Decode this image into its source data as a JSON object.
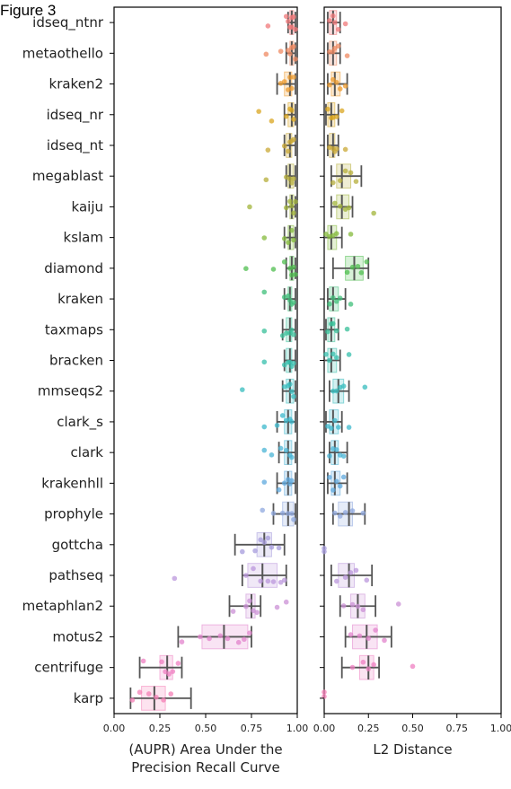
{
  "figure_label": "Figure 3",
  "chart_data": [
    {
      "type": "box",
      "orientation": "horizontal",
      "xlabel": "(AUPR) Area Under the Precision Recall Curve",
      "xlabel_lines": [
        "(AUPR) Area Under the",
        "Precision Recall Curve"
      ],
      "xlim": [
        0.0,
        1.0
      ],
      "xticks": [
        "0.00",
        "0.25",
        "0.50",
        "0.75",
        "1.00"
      ],
      "categories": [
        "idseq_ntnr",
        "metaothello",
        "kraken2",
        "idseq_nr",
        "idseq_nt",
        "megablast",
        "kaiju",
        "kslam",
        "diamond",
        "kraken",
        "taxmaps",
        "bracken",
        "mmseqs2",
        "clark_s",
        "clark",
        "krakenhll",
        "prophyle",
        "gottcha",
        "pathseq",
        "metaphlan2",
        "motus2",
        "centrifuge",
        "karp"
      ],
      "boxes": [
        {
          "whislo": 0.95,
          "q1": 0.96,
          "med": 0.97,
          "q3": 0.98,
          "whishi": 0.99,
          "points": [
            0.84,
            0.94,
            0.95,
            0.96,
            0.97,
            0.97,
            0.98,
            0.99
          ]
        },
        {
          "whislo": 0.94,
          "q1": 0.96,
          "med": 0.97,
          "q3": 0.98,
          "whishi": 0.99,
          "points": [
            0.83,
            0.91,
            0.95,
            0.96,
            0.97,
            0.98,
            0.99
          ]
        },
        {
          "whislo": 0.89,
          "q1": 0.93,
          "med": 0.96,
          "q3": 0.97,
          "whishi": 0.99,
          "points": [
            0.91,
            0.93,
            0.95,
            0.96,
            0.97,
            0.98
          ]
        },
        {
          "whislo": 0.93,
          "q1": 0.95,
          "med": 0.97,
          "q3": 0.98,
          "whishi": 0.99,
          "points": [
            0.79,
            0.86,
            0.94,
            0.96,
            0.97,
            0.98
          ]
        },
        {
          "whislo": 0.93,
          "q1": 0.94,
          "med": 0.96,
          "q3": 0.97,
          "whishi": 0.99,
          "points": [
            0.84,
            0.93,
            0.95,
            0.96,
            0.97,
            0.98
          ]
        },
        {
          "whislo": 0.94,
          "q1": 0.95,
          "med": 0.96,
          "q3": 0.98,
          "whishi": 0.99,
          "points": [
            0.83,
            0.94,
            0.96,
            0.97,
            0.98
          ]
        },
        {
          "whislo": 0.94,
          "q1": 0.96,
          "med": 0.97,
          "q3": 0.98,
          "whishi": 0.99,
          "points": [
            0.74,
            0.94,
            0.96,
            0.97,
            0.98,
            0.99
          ]
        },
        {
          "whislo": 0.93,
          "q1": 0.95,
          "med": 0.96,
          "q3": 0.98,
          "whishi": 0.99,
          "points": [
            0.82,
            0.93,
            0.95,
            0.97,
            0.98
          ]
        },
        {
          "whislo": 0.94,
          "q1": 0.96,
          "med": 0.97,
          "q3": 0.98,
          "whishi": 0.99,
          "points": [
            0.72,
            0.87,
            0.93,
            0.96,
            0.97,
            0.98,
            0.99
          ]
        },
        {
          "whislo": 0.93,
          "q1": 0.95,
          "med": 0.96,
          "q3": 0.97,
          "whishi": 0.99,
          "points": [
            0.82,
            0.93,
            0.95,
            0.96,
            0.97,
            0.98
          ]
        },
        {
          "whislo": 0.92,
          "q1": 0.94,
          "med": 0.96,
          "q3": 0.97,
          "whishi": 0.99,
          "points": [
            0.82,
            0.92,
            0.94,
            0.96,
            0.97,
            0.98
          ]
        },
        {
          "whislo": 0.93,
          "q1": 0.94,
          "med": 0.96,
          "q3": 0.97,
          "whishi": 0.99,
          "points": [
            0.82,
            0.93,
            0.95,
            0.96,
            0.97,
            0.98
          ]
        },
        {
          "whislo": 0.92,
          "q1": 0.94,
          "med": 0.96,
          "q3": 0.98,
          "whishi": 0.99,
          "points": [
            0.7,
            0.93,
            0.95,
            0.96,
            0.97,
            0.98
          ]
        },
        {
          "whislo": 0.89,
          "q1": 0.93,
          "med": 0.95,
          "q3": 0.97,
          "whishi": 0.99,
          "points": [
            0.82,
            0.89,
            0.92,
            0.94,
            0.96,
            0.97
          ]
        },
        {
          "whislo": 0.9,
          "q1": 0.93,
          "med": 0.95,
          "q3": 0.97,
          "whishi": 0.99,
          "points": [
            0.82,
            0.86,
            0.91,
            0.94,
            0.96,
            0.97
          ]
        },
        {
          "whislo": 0.89,
          "q1": 0.93,
          "med": 0.95,
          "q3": 0.97,
          "whishi": 0.99,
          "points": [
            0.82,
            0.9,
            0.93,
            0.95,
            0.96,
            0.97
          ]
        },
        {
          "whislo": 0.87,
          "q1": 0.92,
          "med": 0.95,
          "q3": 0.98,
          "whishi": 0.99,
          "points": [
            0.81,
            0.87,
            0.92,
            0.95,
            0.97,
            0.98
          ]
        },
        {
          "whislo": 0.66,
          "q1": 0.78,
          "med": 0.82,
          "q3": 0.86,
          "whishi": 0.93,
          "points": [
            0.7,
            0.77,
            0.8,
            0.82,
            0.84,
            0.86,
            0.9
          ]
        },
        {
          "whislo": 0.7,
          "q1": 0.73,
          "med": 0.81,
          "q3": 0.89,
          "whishi": 0.94,
          "points": [
            0.33,
            0.72,
            0.76,
            0.8,
            0.84,
            0.87,
            0.91,
            0.93
          ]
        },
        {
          "whislo": 0.63,
          "q1": 0.72,
          "med": 0.75,
          "q3": 0.77,
          "whishi": 0.8,
          "points": [
            0.65,
            0.72,
            0.74,
            0.76,
            0.78,
            0.89,
            0.94
          ]
        },
        {
          "whislo": 0.35,
          "q1": 0.48,
          "med": 0.6,
          "q3": 0.73,
          "whishi": 0.75,
          "points": [
            0.37,
            0.47,
            0.52,
            0.58,
            0.62,
            0.68,
            0.71,
            0.74
          ]
        },
        {
          "whislo": 0.14,
          "q1": 0.25,
          "med": 0.29,
          "q3": 0.32,
          "whishi": 0.37,
          "points": [
            0.16,
            0.26,
            0.28,
            0.3,
            0.32,
            0.35
          ]
        },
        {
          "whislo": 0.09,
          "q1": 0.15,
          "med": 0.22,
          "q3": 0.28,
          "whishi": 0.42,
          "points": [
            0.1,
            0.14,
            0.19,
            0.23,
            0.27,
            0.31
          ]
        }
      ]
    },
    {
      "type": "box",
      "orientation": "horizontal",
      "xlabel": "L2 Distance",
      "xlim": [
        0.0,
        1.0
      ],
      "xticks": [
        "0.00",
        "0.25",
        "0.50",
        "0.75",
        "1.00"
      ],
      "categories": [
        "idseq_ntnr",
        "metaothello",
        "kraken2",
        "idseq_nr",
        "idseq_nt",
        "megablast",
        "kaiju",
        "kslam",
        "diamond",
        "kraken",
        "taxmaps",
        "bracken",
        "mmseqs2",
        "clark_s",
        "clark",
        "krakenhll",
        "prophyle",
        "gottcha",
        "pathseq",
        "metaphlan2",
        "motus2",
        "centrifuge",
        "karp"
      ],
      "boxes": [
        {
          "whislo": 0.02,
          "q1": 0.03,
          "med": 0.05,
          "q3": 0.07,
          "whishi": 0.09,
          "points": [
            0.03,
            0.05,
            0.06,
            0.08,
            0.12
          ]
        },
        {
          "whislo": 0.02,
          "q1": 0.03,
          "med": 0.05,
          "q3": 0.07,
          "whishi": 0.09,
          "points": [
            0.03,
            0.05,
            0.06,
            0.08,
            0.13
          ]
        },
        {
          "whislo": 0.02,
          "q1": 0.04,
          "med": 0.06,
          "q3": 0.09,
          "whishi": 0.13,
          "points": [
            0.03,
            0.05,
            0.07,
            0.09,
            0.12
          ]
        },
        {
          "whislo": 0.01,
          "q1": 0.02,
          "med": 0.04,
          "q3": 0.06,
          "whishi": 0.08,
          "points": [
            0.02,
            0.04,
            0.05,
            0.07,
            0.1
          ]
        },
        {
          "whislo": 0.02,
          "q1": 0.03,
          "med": 0.05,
          "q3": 0.06,
          "whishi": 0.08,
          "points": [
            0.03,
            0.05,
            0.06,
            0.07,
            0.12
          ]
        },
        {
          "whislo": 0.04,
          "q1": 0.07,
          "med": 0.1,
          "q3": 0.15,
          "whishi": 0.21,
          "points": [
            0.05,
            0.09,
            0.12,
            0.15,
            0.18
          ]
        },
        {
          "whislo": 0.04,
          "q1": 0.07,
          "med": 0.1,
          "q3": 0.14,
          "whishi": 0.16,
          "points": [
            0.06,
            0.09,
            0.12,
            0.14,
            0.28
          ]
        },
        {
          "whislo": 0.0,
          "q1": 0.02,
          "med": 0.04,
          "q3": 0.07,
          "whishi": 0.1,
          "points": [
            0.01,
            0.03,
            0.05,
            0.07,
            0.15
          ]
        },
        {
          "whislo": 0.05,
          "q1": 0.12,
          "med": 0.17,
          "q3": 0.22,
          "whishi": 0.25,
          "points": [
            0.13,
            0.16,
            0.19,
            0.21,
            0.24
          ]
        },
        {
          "whislo": 0.02,
          "q1": 0.03,
          "med": 0.05,
          "q3": 0.08,
          "whishi": 0.12,
          "points": [
            0.03,
            0.05,
            0.07,
            0.09,
            0.15
          ]
        },
        {
          "whislo": 0.01,
          "q1": 0.02,
          "med": 0.04,
          "q3": 0.06,
          "whishi": 0.08,
          "points": [
            0.02,
            0.04,
            0.05,
            0.07,
            0.13
          ]
        },
        {
          "whislo": 0.0,
          "q1": 0.02,
          "med": 0.04,
          "q3": 0.07,
          "whishi": 0.09,
          "points": [
            0.01,
            0.03,
            0.05,
            0.07,
            0.14
          ]
        },
        {
          "whislo": 0.03,
          "q1": 0.05,
          "med": 0.08,
          "q3": 0.11,
          "whishi": 0.14,
          "points": [
            0.05,
            0.07,
            0.09,
            0.11,
            0.23
          ]
        },
        {
          "whislo": 0.01,
          "q1": 0.03,
          "med": 0.05,
          "q3": 0.08,
          "whishi": 0.1,
          "points": [
            0.02,
            0.04,
            0.06,
            0.08,
            0.14
          ]
        },
        {
          "whislo": 0.03,
          "q1": 0.04,
          "med": 0.06,
          "q3": 0.08,
          "whishi": 0.13,
          "points": [
            0.03,
            0.05,
            0.07,
            0.09,
            0.11
          ]
        },
        {
          "whislo": 0.02,
          "q1": 0.04,
          "med": 0.06,
          "q3": 0.09,
          "whishi": 0.13,
          "points": [
            0.03,
            0.05,
            0.07,
            0.09,
            0.11
          ]
        },
        {
          "whislo": 0.05,
          "q1": 0.08,
          "med": 0.14,
          "q3": 0.16,
          "whishi": 0.23,
          "points": [
            0.06,
            0.09,
            0.12,
            0.16,
            0.22
          ]
        },
        {
          "whislo": 0.0,
          "q1": 0.0,
          "med": 0.0,
          "q3": 0.0,
          "whishi": 0.0,
          "points": [
            0.0,
            0.0
          ]
        },
        {
          "whislo": 0.04,
          "q1": 0.08,
          "med": 0.14,
          "q3": 0.17,
          "whishi": 0.27,
          "points": [
            0.07,
            0.12,
            0.15,
            0.18,
            0.24
          ]
        },
        {
          "whislo": 0.09,
          "q1": 0.15,
          "med": 0.19,
          "q3": 0.23,
          "whishi": 0.29,
          "points": [
            0.11,
            0.16,
            0.19,
            0.22,
            0.42
          ]
        },
        {
          "whislo": 0.12,
          "q1": 0.16,
          "med": 0.24,
          "q3": 0.3,
          "whishi": 0.38,
          "points": [
            0.15,
            0.2,
            0.25,
            0.29,
            0.34
          ]
        },
        {
          "whislo": 0.1,
          "q1": 0.2,
          "med": 0.25,
          "q3": 0.28,
          "whishi": 0.31,
          "points": [
            0.16,
            0.22,
            0.25,
            0.28,
            0.5
          ]
        },
        {
          "whislo": 0.0,
          "q1": 0.0,
          "med": 0.0,
          "q3": 0.0,
          "whishi": 0.0,
          "points": [
            0.0,
            0.0
          ]
        }
      ]
    }
  ],
  "colors": [
    "#f0787a",
    "#ef8a62",
    "#ee9b2e",
    "#d9a520",
    "#c9a836",
    "#b6ae3a",
    "#a1b43a",
    "#84b93b",
    "#4fbd4f",
    "#3fbf7a",
    "#37bf98",
    "#36bfac",
    "#37bcbd",
    "#3cb8cc",
    "#4ab4d6",
    "#5ea8dd",
    "#8fa8df",
    "#a69bdc",
    "#bb97dc",
    "#cb90d6",
    "#e283cc",
    "#ef7fc1",
    "#f47fb6"
  ]
}
